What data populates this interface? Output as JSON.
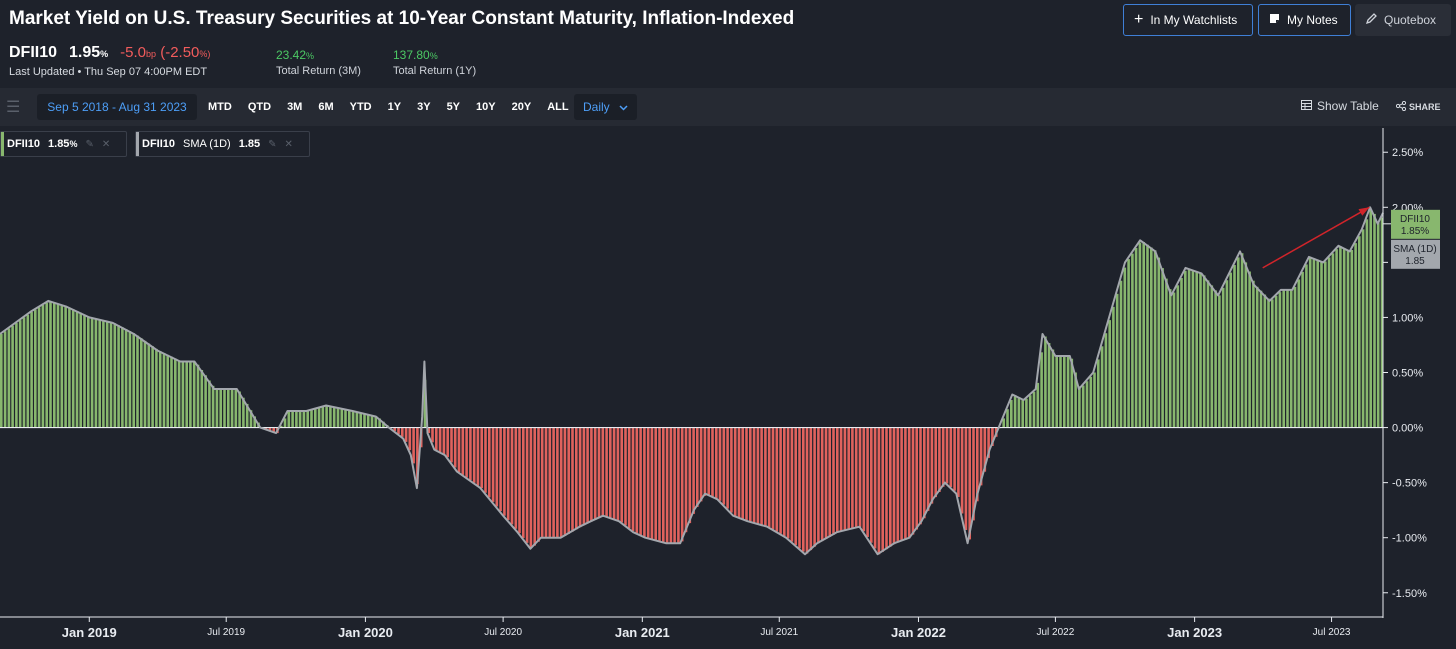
{
  "header": {
    "title": "Market Yield on U.S. Treasury Securities at 10-Year Constant Maturity, Inflation-Indexed",
    "watchlist_label": "In My Watchlists",
    "notes_label": "My Notes",
    "quotebox_label": "Quotebox"
  },
  "ticker": {
    "symbol": "DFII10",
    "value": "1.95",
    "value_unit": "%",
    "change_bp": "-5.0",
    "change_bp_unit": "bp",
    "change_pct": "(-2.50",
    "change_pct_unit": "%)",
    "last_updated": "Last Updated • Thu Sep 07 4:00PM EDT"
  },
  "returns": [
    {
      "value": "23.42",
      "unit": "%",
      "label": "Total Return (3M)"
    },
    {
      "value": "137.80",
      "unit": "%",
      "label": "Total Return (1Y)"
    }
  ],
  "toolbar": {
    "date_range": "Sep 5 2018 - Aug 31 2023",
    "periods": [
      "MTD",
      "QTD",
      "3M",
      "6M",
      "YTD",
      "1Y",
      "3Y",
      "5Y",
      "10Y",
      "20Y",
      "ALL"
    ],
    "frequency": "Daily",
    "show_table": "Show Table",
    "share": "SHARE"
  },
  "legend": [
    {
      "symbol": "DFII10",
      "value": "1.85",
      "unit": "%"
    },
    {
      "symbol": "DFII10",
      "indicator": "SMA (1D)",
      "value": "1.85"
    }
  ],
  "colors": {
    "positive": "#88b76e",
    "negative": "#e0625d",
    "line": "#a3a7ad",
    "accent": "#3f7fd6",
    "arrow": "#d0242a"
  },
  "chart_data": {
    "type": "area",
    "y_unit": "%",
    "ylim": [
      -1.72,
      2.72
    ],
    "y_ticks": [
      "2.50%",
      "2.00%",
      "1.50%",
      "1.00%",
      "0.50%",
      "0.00%",
      "-0.50%",
      "-1.00%",
      "-1.50%"
    ],
    "y_tick_values": [
      2.5,
      2.0,
      1.5,
      1.0,
      0.5,
      0.0,
      -0.5,
      -1.0,
      -1.5
    ],
    "x_range": [
      "2018-09-05",
      "2023-09-07"
    ],
    "x_ticks": [
      {
        "label": "Jan 2019",
        "date": "2019-01-01",
        "major": true
      },
      {
        "label": "Jul 2019",
        "date": "2019-07-01",
        "major": false
      },
      {
        "label": "Jan 2020",
        "date": "2020-01-01",
        "major": true
      },
      {
        "label": "Jul 2020",
        "date": "2020-07-01",
        "major": false
      },
      {
        "label": "Jan 2021",
        "date": "2021-01-01",
        "major": true
      },
      {
        "label": "Jul 2021",
        "date": "2021-07-01",
        "major": false
      },
      {
        "label": "Jan 2022",
        "date": "2022-01-01",
        "major": true
      },
      {
        "label": "Jul 2022",
        "date": "2022-07-01",
        "major": false
      },
      {
        "label": "Jan 2023",
        "date": "2023-01-01",
        "major": true
      },
      {
        "label": "Jul 2023",
        "date": "2023-07-01",
        "major": false
      }
    ],
    "series": [
      {
        "name": "DFII10",
        "points": [
          [
            "2018-09-05",
            0.85
          ],
          [
            "2018-10-15",
            1.05
          ],
          [
            "2018-11-08",
            1.15
          ],
          [
            "2018-12-01",
            1.1
          ],
          [
            "2019-01-01",
            1.0
          ],
          [
            "2019-02-01",
            0.95
          ],
          [
            "2019-03-01",
            0.85
          ],
          [
            "2019-04-01",
            0.7
          ],
          [
            "2019-05-01",
            0.6
          ],
          [
            "2019-05-20",
            0.6
          ],
          [
            "2019-06-15",
            0.35
          ],
          [
            "2019-07-15",
            0.35
          ],
          [
            "2019-08-15",
            0.0
          ],
          [
            "2019-09-05",
            -0.05
          ],
          [
            "2019-09-20",
            0.15
          ],
          [
            "2019-10-15",
            0.15
          ],
          [
            "2019-11-10",
            0.2
          ],
          [
            "2019-12-15",
            0.15
          ],
          [
            "2020-01-15",
            0.1
          ],
          [
            "2020-02-01",
            0.0
          ],
          [
            "2020-02-20",
            -0.1
          ],
          [
            "2020-03-01",
            -0.25
          ],
          [
            "2020-03-09",
            -0.55
          ],
          [
            "2020-03-16",
            0.1
          ],
          [
            "2020-03-19",
            0.6
          ],
          [
            "2020-03-23",
            -0.05
          ],
          [
            "2020-04-01",
            -0.2
          ],
          [
            "2020-04-15",
            -0.25
          ],
          [
            "2020-05-01",
            -0.4
          ],
          [
            "2020-06-01",
            -0.55
          ],
          [
            "2020-07-01",
            -0.8
          ],
          [
            "2020-07-20",
            -0.95
          ],
          [
            "2020-08-06",
            -1.1
          ],
          [
            "2020-08-20",
            -1.0
          ],
          [
            "2020-09-15",
            -1.0
          ],
          [
            "2020-10-10",
            -0.9
          ],
          [
            "2020-10-25",
            -0.85
          ],
          [
            "2020-11-10",
            -0.8
          ],
          [
            "2020-12-01",
            -0.85
          ],
          [
            "2020-12-20",
            -0.95
          ],
          [
            "2021-01-05",
            -1.0
          ],
          [
            "2021-02-01",
            -1.05
          ],
          [
            "2021-02-20",
            -1.05
          ],
          [
            "2021-03-10",
            -0.75
          ],
          [
            "2021-03-25",
            -0.6
          ],
          [
            "2021-04-10",
            -0.65
          ],
          [
            "2021-05-01",
            -0.8
          ],
          [
            "2021-05-20",
            -0.85
          ],
          [
            "2021-06-15",
            -0.9
          ],
          [
            "2021-07-10",
            -1.0
          ],
          [
            "2021-08-04",
            -1.15
          ],
          [
            "2021-08-20",
            -1.05
          ],
          [
            "2021-09-15",
            -0.95
          ],
          [
            "2021-10-15",
            -0.9
          ],
          [
            "2021-11-08",
            -1.15
          ],
          [
            "2021-11-30",
            -1.05
          ],
          [
            "2021-12-20",
            -1.0
          ],
          [
            "2022-01-05",
            -0.85
          ],
          [
            "2022-01-20",
            -0.65
          ],
          [
            "2022-02-05",
            -0.5
          ],
          [
            "2022-02-20",
            -0.6
          ],
          [
            "2022-03-07",
            -1.05
          ],
          [
            "2022-03-20",
            -0.6
          ],
          [
            "2022-04-05",
            -0.2
          ],
          [
            "2022-04-20",
            0.05
          ],
          [
            "2022-05-05",
            0.3
          ],
          [
            "2022-05-20",
            0.25
          ],
          [
            "2022-06-05",
            0.35
          ],
          [
            "2022-06-14",
            0.85
          ],
          [
            "2022-07-01",
            0.65
          ],
          [
            "2022-07-20",
            0.65
          ],
          [
            "2022-08-01",
            0.35
          ],
          [
            "2022-08-20",
            0.5
          ],
          [
            "2022-09-10",
            1.0
          ],
          [
            "2022-10-01",
            1.5
          ],
          [
            "2022-10-21",
            1.7
          ],
          [
            "2022-11-10",
            1.6
          ],
          [
            "2022-12-01",
            1.2
          ],
          [
            "2022-12-20",
            1.45
          ],
          [
            "2023-01-10",
            1.4
          ],
          [
            "2023-02-01",
            1.2
          ],
          [
            "2023-03-02",
            1.6
          ],
          [
            "2023-03-20",
            1.3
          ],
          [
            "2023-04-10",
            1.15
          ],
          [
            "2023-04-25",
            1.25
          ],
          [
            "2023-05-10",
            1.25
          ],
          [
            "2023-06-01",
            1.55
          ],
          [
            "2023-06-20",
            1.5
          ],
          [
            "2023-07-10",
            1.65
          ],
          [
            "2023-07-25",
            1.6
          ],
          [
            "2023-08-10",
            1.8
          ],
          [
            "2023-08-21",
            2.0
          ],
          [
            "2023-08-31",
            1.85
          ],
          [
            "2023-09-07",
            1.95
          ]
        ]
      },
      {
        "name": "SMA (1D)",
        "last_value": 1.85
      }
    ],
    "last_value_labels": [
      {
        "series": "DFII10",
        "value": "1.85%"
      },
      {
        "series": "SMA (1D)",
        "value": "1.85"
      }
    ],
    "annotation": {
      "type": "arrow",
      "from": [
        "2023-04-01",
        1.45
      ],
      "to": [
        "2023-08-20",
        2.0
      ]
    },
    "grid": false,
    "legend_position": "top-left"
  }
}
